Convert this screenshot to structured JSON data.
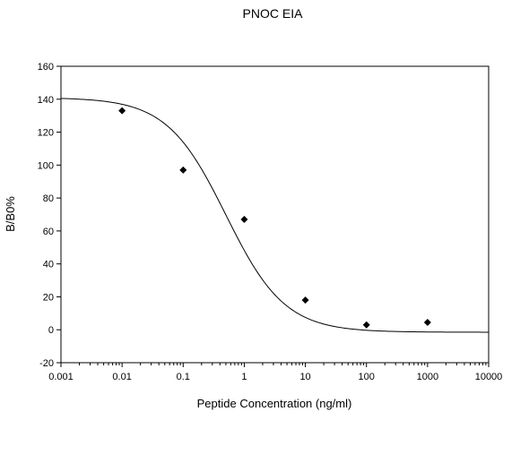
{
  "chart_data": {
    "type": "scatter",
    "title": "PNOC EIA",
    "xlabel": "Peptide Concentration (ng/ml)",
    "ylabel": "B/B0%",
    "x_scale": "log",
    "xlim": [
      0.001,
      10000
    ],
    "ylim": [
      -20,
      160
    ],
    "grid": false,
    "x_ticks": [
      0.001,
      0.01,
      0.1,
      1,
      10,
      100,
      1000,
      10000
    ],
    "x_tick_labels": [
      "0.001",
      "0.01",
      "0.1",
      "1",
      "10",
      "100",
      "1000",
      "10000"
    ],
    "y_ticks": [
      -20,
      0,
      20,
      40,
      60,
      80,
      100,
      120,
      140,
      160
    ],
    "y_tick_labels": [
      "-20",
      "0",
      "20",
      "40",
      "60",
      "80",
      "100",
      "120",
      "140",
      "160"
    ],
    "points": {
      "x": [
        0.01,
        0.1,
        1,
        10,
        100,
        1000
      ],
      "y": [
        133,
        97,
        67,
        18,
        3,
        4.5
      ],
      "marker": "diamond",
      "color": "#000000"
    },
    "fit_curve": {
      "type": "four-parameter logistic",
      "top": 141,
      "bottom": -1.5,
      "ec50": 0.5,
      "hill_slope": 0.9,
      "color": "#000000"
    }
  }
}
